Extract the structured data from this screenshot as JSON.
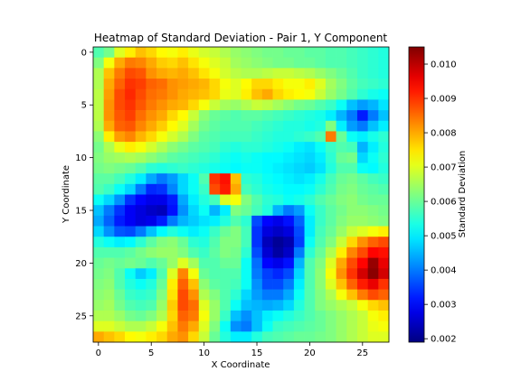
{
  "chart_data": {
    "type": "heatmap",
    "title": "Heatmap of Standard Deviation - Pair 1, Y Component",
    "xlabel": "X Coordinate",
    "ylabel": "Y Coordinate",
    "colorbar_label": "Standard Deviation",
    "colormap": "jet",
    "rows": 28,
    "cols": 28,
    "xlim": [
      -0.5,
      27.5
    ],
    "ylim": [
      27.5,
      -0.5
    ],
    "x_ticks": [
      0,
      5,
      10,
      15,
      20,
      25
    ],
    "y_ticks": [
      0,
      5,
      10,
      15,
      20,
      25
    ],
    "x_tick_labels": [
      "0",
      "5",
      "10",
      "15",
      "20",
      "25"
    ],
    "y_tick_labels": [
      "0",
      "5",
      "10",
      "15",
      "20",
      "25"
    ],
    "vmin": 0.0019,
    "vmax": 0.0105,
    "colorbar_ticks": [
      0.002,
      0.003,
      0.004,
      0.005,
      0.006,
      0.007,
      0.008,
      0.009,
      0.01
    ],
    "colorbar_tick_labels": [
      "0.002",
      "0.003",
      "0.004",
      "0.005",
      "0.006",
      "0.007",
      "0.008",
      "0.009",
      "0.010"
    ],
    "values": [
      [
        0.0058,
        0.0061,
        0.007,
        0.0074,
        0.0078,
        0.0076,
        0.0073,
        0.0072,
        0.0074,
        0.0071,
        0.0069,
        0.0068,
        0.0066,
        0.0064,
        0.0063,
        0.0062,
        0.0061,
        0.0061,
        0.006,
        0.006,
        0.0059,
        0.0059,
        0.0058,
        0.0058,
        0.0057,
        0.0056,
        0.0055,
        0.0054
      ],
      [
        0.0062,
        0.0072,
        0.008,
        0.0084,
        0.0083,
        0.008,
        0.0077,
        0.0076,
        0.0078,
        0.0075,
        0.0072,
        0.007,
        0.0068,
        0.0065,
        0.0064,
        0.0063,
        0.0062,
        0.0061,
        0.0061,
        0.006,
        0.006,
        0.0059,
        0.0058,
        0.0058,
        0.0057,
        0.0056,
        0.0055,
        0.0054
      ],
      [
        0.0066,
        0.0078,
        0.0084,
        0.0088,
        0.0087,
        0.0082,
        0.008,
        0.0079,
        0.008,
        0.0078,
        0.0075,
        0.0072,
        0.0069,
        0.0067,
        0.0066,
        0.0066,
        0.0067,
        0.0068,
        0.0068,
        0.0067,
        0.0066,
        0.0064,
        0.0062,
        0.006,
        0.0058,
        0.0056,
        0.0055,
        0.0054
      ],
      [
        0.0066,
        0.008,
        0.0086,
        0.009,
        0.0089,
        0.0086,
        0.0085,
        0.0082,
        0.0081,
        0.008,
        0.0079,
        0.0076,
        0.0072,
        0.007,
        0.0073,
        0.0076,
        0.0076,
        0.0074,
        0.0072,
        0.0072,
        0.0074,
        0.007,
        0.0065,
        0.0062,
        0.0059,
        0.0057,
        0.0056,
        0.0055
      ],
      [
        0.0067,
        0.0081,
        0.0088,
        0.0091,
        0.0088,
        0.0085,
        0.0084,
        0.0082,
        0.008,
        0.0079,
        0.0078,
        0.0076,
        0.0071,
        0.007,
        0.0074,
        0.0078,
        0.008,
        0.0076,
        0.0074,
        0.0073,
        0.0072,
        0.0068,
        0.0064,
        0.0061,
        0.0058,
        0.0055,
        0.0053,
        0.0052
      ],
      [
        0.0067,
        0.0082,
        0.0088,
        0.009,
        0.0087,
        0.0084,
        0.0082,
        0.008,
        0.0079,
        0.0076,
        0.0072,
        0.0068,
        0.0065,
        0.0064,
        0.0066,
        0.0068,
        0.0067,
        0.0065,
        0.0063,
        0.0061,
        0.006,
        0.0058,
        0.0056,
        0.0052,
        0.0046,
        0.0043,
        0.0045,
        0.0049
      ],
      [
        0.0067,
        0.0082,
        0.0087,
        0.0089,
        0.0085,
        0.0082,
        0.008,
        0.0076,
        0.0073,
        0.0068,
        0.0063,
        0.006,
        0.0059,
        0.0058,
        0.0059,
        0.0059,
        0.0058,
        0.0057,
        0.0056,
        0.0055,
        0.0054,
        0.0053,
        0.005,
        0.0045,
        0.004,
        0.0032,
        0.004,
        0.0046
      ],
      [
        0.0066,
        0.008,
        0.0086,
        0.0087,
        0.0083,
        0.008,
        0.0077,
        0.0073,
        0.007,
        0.0065,
        0.0061,
        0.0059,
        0.0058,
        0.0058,
        0.0058,
        0.0057,
        0.0056,
        0.0055,
        0.0054,
        0.0054,
        0.0053,
        0.0054,
        0.0062,
        0.005,
        0.0043,
        0.004,
        0.0046,
        0.005
      ],
      [
        0.0063,
        0.0074,
        0.0081,
        0.0083,
        0.0079,
        0.0076,
        0.0072,
        0.0069,
        0.0066,
        0.0062,
        0.0059,
        0.0058,
        0.0057,
        0.0057,
        0.0057,
        0.0056,
        0.0055,
        0.0054,
        0.0054,
        0.0055,
        0.0056,
        0.0058,
        0.0084,
        0.006,
        0.0052,
        0.005,
        0.0053,
        0.0055
      ],
      [
        0.0061,
        0.0066,
        0.0071,
        0.0074,
        0.0072,
        0.0069,
        0.0066,
        0.0063,
        0.0061,
        0.0059,
        0.0058,
        0.0057,
        0.0055,
        0.0054,
        0.0055,
        0.0055,
        0.0054,
        0.0053,
        0.0052,
        0.005,
        0.0049,
        0.0052,
        0.0056,
        0.0058,
        0.0057,
        0.0045,
        0.005,
        0.0054
      ],
      [
        0.0062,
        0.0064,
        0.0065,
        0.0066,
        0.0065,
        0.0063,
        0.0061,
        0.0059,
        0.0058,
        0.0057,
        0.0056,
        0.0055,
        0.0053,
        0.0052,
        0.0053,
        0.0052,
        0.0051,
        0.0051,
        0.005,
        0.0049,
        0.0048,
        0.005,
        0.0055,
        0.006,
        0.0061,
        0.0048,
        0.0052,
        0.0055
      ],
      [
        0.0061,
        0.0062,
        0.0061,
        0.006,
        0.0058,
        0.0055,
        0.0054,
        0.0055,
        0.0056,
        0.0055,
        0.0054,
        0.0053,
        0.0052,
        0.0051,
        0.0052,
        0.0052,
        0.0051,
        0.005,
        0.0049,
        0.0048,
        0.0047,
        0.0049,
        0.0054,
        0.0058,
        0.0058,
        0.0052,
        0.0051,
        0.0054
      ],
      [
        0.0059,
        0.0059,
        0.0057,
        0.0054,
        0.005,
        0.0044,
        0.004,
        0.0043,
        0.0048,
        0.0052,
        0.0058,
        0.009,
        0.0093,
        0.0078,
        0.0055,
        0.0054,
        0.0052,
        0.0051,
        0.005,
        0.0049,
        0.005,
        0.0053,
        0.0057,
        0.006,
        0.0061,
        0.0059,
        0.0057,
        0.0056
      ],
      [
        0.0058,
        0.0056,
        0.0052,
        0.0048,
        0.004,
        0.0033,
        0.0034,
        0.0041,
        0.0048,
        0.0052,
        0.0056,
        0.0088,
        0.0092,
        0.008,
        0.0057,
        0.0055,
        0.0053,
        0.0052,
        0.0051,
        0.0051,
        0.0052,
        0.0055,
        0.0058,
        0.0061,
        0.0062,
        0.006,
        0.0059,
        0.0058
      ],
      [
        0.0052,
        0.0048,
        0.0042,
        0.0034,
        0.003,
        0.0028,
        0.0028,
        0.0032,
        0.0044,
        0.005,
        0.0054,
        0.0057,
        0.007,
        0.0072,
        0.0062,
        0.0058,
        0.0055,
        0.0054,
        0.0052,
        0.0053,
        0.0055,
        0.0058,
        0.006,
        0.0062,
        0.0063,
        0.0061,
        0.006,
        0.006
      ],
      [
        0.0046,
        0.004,
        0.0034,
        0.0029,
        0.0027,
        0.0025,
        0.0024,
        0.0031,
        0.0042,
        0.0048,
        0.0052,
        0.0045,
        0.005,
        0.0062,
        0.006,
        0.0057,
        0.0054,
        0.0045,
        0.004,
        0.0043,
        0.0052,
        0.0056,
        0.0059,
        0.0061,
        0.0063,
        0.0063,
        0.0062,
        0.0061
      ],
      [
        0.0044,
        0.0038,
        0.0032,
        0.0029,
        0.0027,
        0.0028,
        0.0032,
        0.004,
        0.0045,
        0.0047,
        0.0049,
        0.005,
        0.0054,
        0.0058,
        0.0055,
        0.0036,
        0.003,
        0.0028,
        0.0031,
        0.0038,
        0.005,
        0.0056,
        0.0059,
        0.0062,
        0.0064,
        0.0064,
        0.0063,
        0.0062
      ],
      [
        0.0048,
        0.0042,
        0.0037,
        0.0036,
        0.004,
        0.0046,
        0.0051,
        0.0054,
        0.0052,
        0.005,
        0.0052,
        0.0056,
        0.006,
        0.0062,
        0.0057,
        0.0034,
        0.0027,
        0.0025,
        0.0027,
        0.0036,
        0.005,
        0.0057,
        0.006,
        0.0064,
        0.0068,
        0.007,
        0.0072,
        0.0074
      ],
      [
        0.0054,
        0.0052,
        0.005,
        0.0051,
        0.0055,
        0.0059,
        0.0062,
        0.0063,
        0.006,
        0.0055,
        0.0054,
        0.0058,
        0.0062,
        0.0062,
        0.0057,
        0.0034,
        0.0024,
        0.0021,
        0.0023,
        0.0035,
        0.0052,
        0.0058,
        0.0062,
        0.0068,
        0.0076,
        0.0082,
        0.0086,
        0.0088
      ],
      [
        0.0058,
        0.0058,
        0.0058,
        0.0059,
        0.0061,
        0.0063,
        0.0064,
        0.0064,
        0.0062,
        0.0058,
        0.0056,
        0.0059,
        0.0062,
        0.0061,
        0.0055,
        0.0036,
        0.0026,
        0.0022,
        0.0025,
        0.004,
        0.0055,
        0.006,
        0.0066,
        0.0074,
        0.0083,
        0.0088,
        0.0094,
        0.0093
      ],
      [
        0.006,
        0.0061,
        0.006,
        0.0061,
        0.006,
        0.0058,
        0.006,
        0.0064,
        0.007,
        0.0065,
        0.0058,
        0.0058,
        0.006,
        0.006,
        0.0052,
        0.0039,
        0.003,
        0.0028,
        0.0031,
        0.0045,
        0.0058,
        0.0062,
        0.007,
        0.008,
        0.0088,
        0.0094,
        0.0103,
        0.0096
      ],
      [
        0.0061,
        0.0062,
        0.0058,
        0.0052,
        0.0047,
        0.005,
        0.0058,
        0.007,
        0.0083,
        0.0072,
        0.006,
        0.0058,
        0.0058,
        0.0058,
        0.0052,
        0.004,
        0.0035,
        0.0033,
        0.0036,
        0.0048,
        0.0058,
        0.0063,
        0.0072,
        0.0082,
        0.009,
        0.0098,
        0.0104,
        0.0098
      ],
      [
        0.0062,
        0.0063,
        0.0058,
        0.0054,
        0.0052,
        0.0054,
        0.006,
        0.0074,
        0.0086,
        0.0078,
        0.0063,
        0.0059,
        0.0058,
        0.0057,
        0.0052,
        0.0042,
        0.0036,
        0.0036,
        0.004,
        0.005,
        0.0058,
        0.0063,
        0.007,
        0.0078,
        0.0086,
        0.0092,
        0.0096,
        0.009
      ],
      [
        0.0063,
        0.0064,
        0.006,
        0.0056,
        0.0055,
        0.0056,
        0.0062,
        0.0075,
        0.0088,
        0.0082,
        0.0066,
        0.0062,
        0.0058,
        0.0055,
        0.0048,
        0.0043,
        0.004,
        0.004,
        0.0044,
        0.0052,
        0.0058,
        0.0062,
        0.0066,
        0.0072,
        0.0078,
        0.0084,
        0.0088,
        0.0086
      ],
      [
        0.0064,
        0.0065,
        0.0061,
        0.0058,
        0.0057,
        0.0058,
        0.0064,
        0.0077,
        0.0088,
        0.0085,
        0.007,
        0.0064,
        0.0058,
        0.0052,
        0.0046,
        0.0045,
        0.0044,
        0.0045,
        0.0048,
        0.0054,
        0.0058,
        0.0062,
        0.0064,
        0.0066,
        0.0068,
        0.0072,
        0.0076,
        0.0078
      ],
      [
        0.0066,
        0.0066,
        0.0064,
        0.0061,
        0.006,
        0.0062,
        0.0066,
        0.0076,
        0.0086,
        0.0084,
        0.0072,
        0.0064,
        0.0056,
        0.0046,
        0.0042,
        0.0046,
        0.005,
        0.0052,
        0.0054,
        0.0056,
        0.0058,
        0.006,
        0.0062,
        0.0064,
        0.0066,
        0.0068,
        0.0072,
        0.0074
      ],
      [
        0.007,
        0.007,
        0.0068,
        0.0066,
        0.0066,
        0.0068,
        0.0072,
        0.0078,
        0.0084,
        0.008,
        0.007,
        0.0062,
        0.0052,
        0.0042,
        0.004,
        0.0046,
        0.0052,
        0.0056,
        0.0057,
        0.0058,
        0.0059,
        0.006,
        0.0062,
        0.0064,
        0.0066,
        0.0068,
        0.0071,
        0.0072
      ],
      [
        0.008,
        0.0078,
        0.0076,
        0.0073,
        0.0072,
        0.0074,
        0.0076,
        0.008,
        0.0082,
        0.0076,
        0.0068,
        0.006,
        0.0054,
        0.005,
        0.005,
        0.0054,
        0.0057,
        0.0058,
        0.0059,
        0.006,
        0.006,
        0.0061,
        0.0062,
        0.0064,
        0.0066,
        0.0068,
        0.007,
        0.007
      ]
    ]
  }
}
